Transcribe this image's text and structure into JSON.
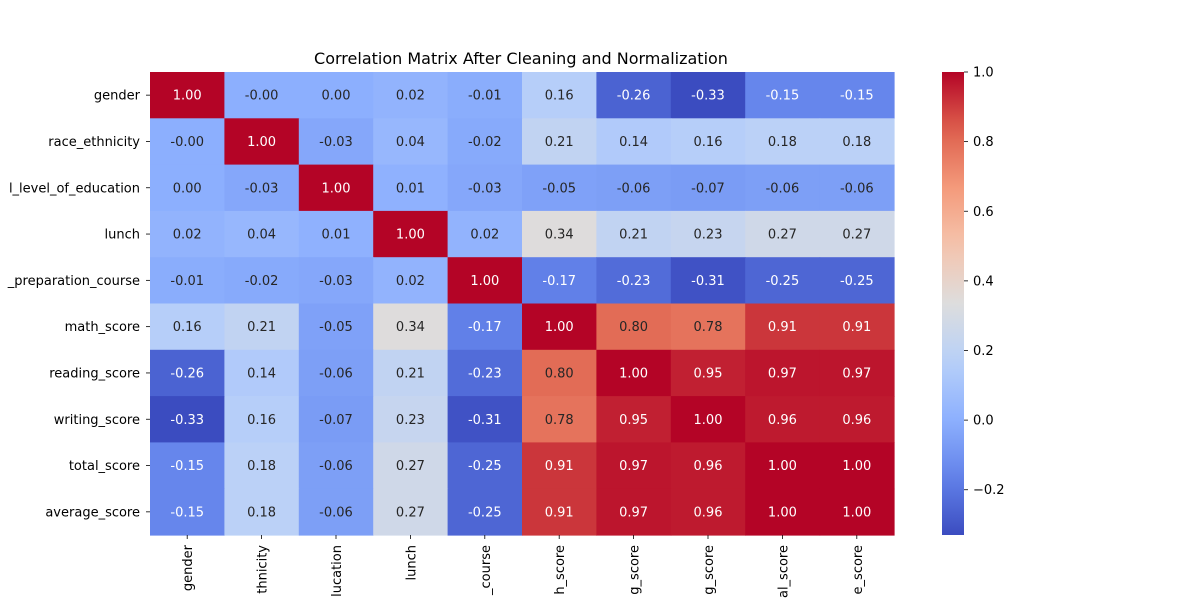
{
  "chart_data": {
    "type": "heatmap",
    "title": "Correlation Matrix After Cleaning and Normalization",
    "row_labels": [
      "gender",
      "race_ethnicity",
      "l_level_of_education",
      "lunch",
      "_preparation_course",
      "math_score",
      "reading_score",
      "writing_score",
      "total_score",
      "average_score"
    ],
    "col_labels": [
      "gender",
      "thnicity",
      "lucation",
      "lunch",
      "_course",
      "h_score",
      "g_score",
      "g_score",
      "al_score",
      "e_score"
    ],
    "values": [
      [
        1.0,
        -0.0,
        0.0,
        0.02,
        -0.01,
        0.16,
        -0.26,
        -0.33,
        -0.15,
        -0.15
      ],
      [
        -0.0,
        1.0,
        -0.03,
        0.04,
        -0.02,
        0.21,
        0.14,
        0.16,
        0.18,
        0.18
      ],
      [
        0.0,
        -0.03,
        1.0,
        0.01,
        -0.03,
        -0.05,
        -0.06,
        -0.07,
        -0.06,
        -0.06
      ],
      [
        0.02,
        0.04,
        0.01,
        1.0,
        0.02,
        0.34,
        0.21,
        0.23,
        0.27,
        0.27
      ],
      [
        -0.01,
        -0.02,
        -0.03,
        0.02,
        1.0,
        -0.17,
        -0.23,
        -0.31,
        -0.25,
        -0.25
      ],
      [
        0.16,
        0.21,
        -0.05,
        0.34,
        -0.17,
        1.0,
        0.8,
        0.78,
        0.91,
        0.91
      ],
      [
        -0.26,
        0.14,
        -0.06,
        0.21,
        -0.23,
        0.8,
        1.0,
        0.95,
        0.97,
        0.97
      ],
      [
        -0.33,
        0.16,
        -0.07,
        0.23,
        -0.31,
        0.78,
        0.95,
        1.0,
        0.96,
        0.96
      ],
      [
        -0.15,
        0.18,
        -0.06,
        0.27,
        -0.25,
        0.91,
        0.97,
        0.96,
        1.0,
        1.0
      ],
      [
        -0.15,
        0.18,
        -0.06,
        0.27,
        -0.25,
        0.91,
        0.97,
        0.96,
        1.0,
        1.0
      ]
    ],
    "cell_labels": [
      [
        "1.00",
        "-0.00",
        "0.00",
        "0.02",
        "-0.01",
        "0.16",
        "-0.26",
        "-0.33",
        "-0.15",
        "-0.15"
      ],
      [
        "-0.00",
        "1.00",
        "-0.03",
        "0.04",
        "-0.02",
        "0.21",
        "0.14",
        "0.16",
        "0.18",
        "0.18"
      ],
      [
        "0.00",
        "-0.03",
        "1.00",
        "0.01",
        "-0.03",
        "-0.05",
        "-0.06",
        "-0.07",
        "-0.06",
        "-0.06"
      ],
      [
        "0.02",
        "0.04",
        "0.01",
        "1.00",
        "0.02",
        "0.34",
        "0.21",
        "0.23",
        "0.27",
        "0.27"
      ],
      [
        "-0.01",
        "-0.02",
        "-0.03",
        "0.02",
        "1.00",
        "-0.17",
        "-0.23",
        "-0.31",
        "-0.25",
        "-0.25"
      ],
      [
        "0.16",
        "0.21",
        "-0.05",
        "0.34",
        "-0.17",
        "1.00",
        "0.80",
        "0.78",
        "0.91",
        "0.91"
      ],
      [
        "-0.26",
        "0.14",
        "-0.06",
        "0.21",
        "-0.23",
        "0.80",
        "1.00",
        "0.95",
        "0.97",
        "0.97"
      ],
      [
        "-0.33",
        "0.16",
        "-0.07",
        "0.23",
        "-0.31",
        "0.78",
        "0.95",
        "1.00",
        "0.96",
        "0.96"
      ],
      [
        "-0.15",
        "0.18",
        "-0.06",
        "0.27",
        "-0.25",
        "0.91",
        "0.97",
        "0.96",
        "1.00",
        "1.00"
      ],
      [
        "-0.15",
        "0.18",
        "-0.06",
        "0.27",
        "-0.25",
        "0.91",
        "0.97",
        "0.96",
        "1.00",
        "1.00"
      ]
    ],
    "colormap": "coolwarm",
    "color_range": [
      -0.33,
      1.0
    ],
    "colorbar": {
      "ticks": [
        -0.2,
        0.0,
        0.2,
        0.4,
        0.6,
        0.8,
        1.0
      ],
      "tick_labels": [
        "−0.2",
        "0.0",
        "0.2",
        "0.4",
        "0.6",
        "0.8",
        "1.0"
      ],
      "placement": "right"
    },
    "grid": false
  }
}
